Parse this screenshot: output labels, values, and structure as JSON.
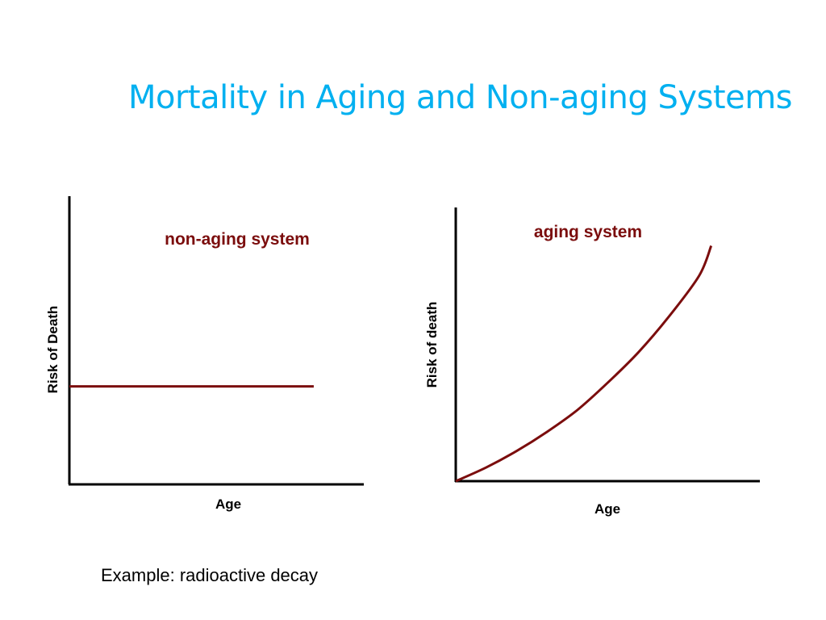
{
  "slide": {
    "title": "Mortality in Aging and Non-aging Systems",
    "title_color": "#00b0f0",
    "example_note": "Example: radioactive decay"
  },
  "colors": {
    "series": "#7b0d0d",
    "axis": "#000000"
  },
  "chart_data": [
    {
      "type": "line",
      "title": "non-aging system",
      "xlabel": "Age",
      "ylabel": "Risk of Death",
      "grid": false,
      "xlim": [
        0,
        1
      ],
      "ylim": [
        0,
        1
      ],
      "series": [
        {
          "x": [
            0,
            0.83
          ],
          "y": [
            0.34,
            0.34
          ]
        }
      ]
    },
    {
      "type": "line",
      "title": "aging system",
      "xlabel": "Age",
      "ylabel": "Risk of death",
      "grid": false,
      "xlim": [
        0,
        1
      ],
      "ylim": [
        0,
        1
      ],
      "series": [
        {
          "x": [
            0,
            0.1,
            0.2,
            0.3,
            0.4,
            0.5,
            0.6,
            0.7,
            0.8,
            0.84
          ],
          "y": [
            0,
            0.05,
            0.11,
            0.18,
            0.26,
            0.36,
            0.47,
            0.6,
            0.75,
            0.86
          ]
        }
      ]
    }
  ]
}
